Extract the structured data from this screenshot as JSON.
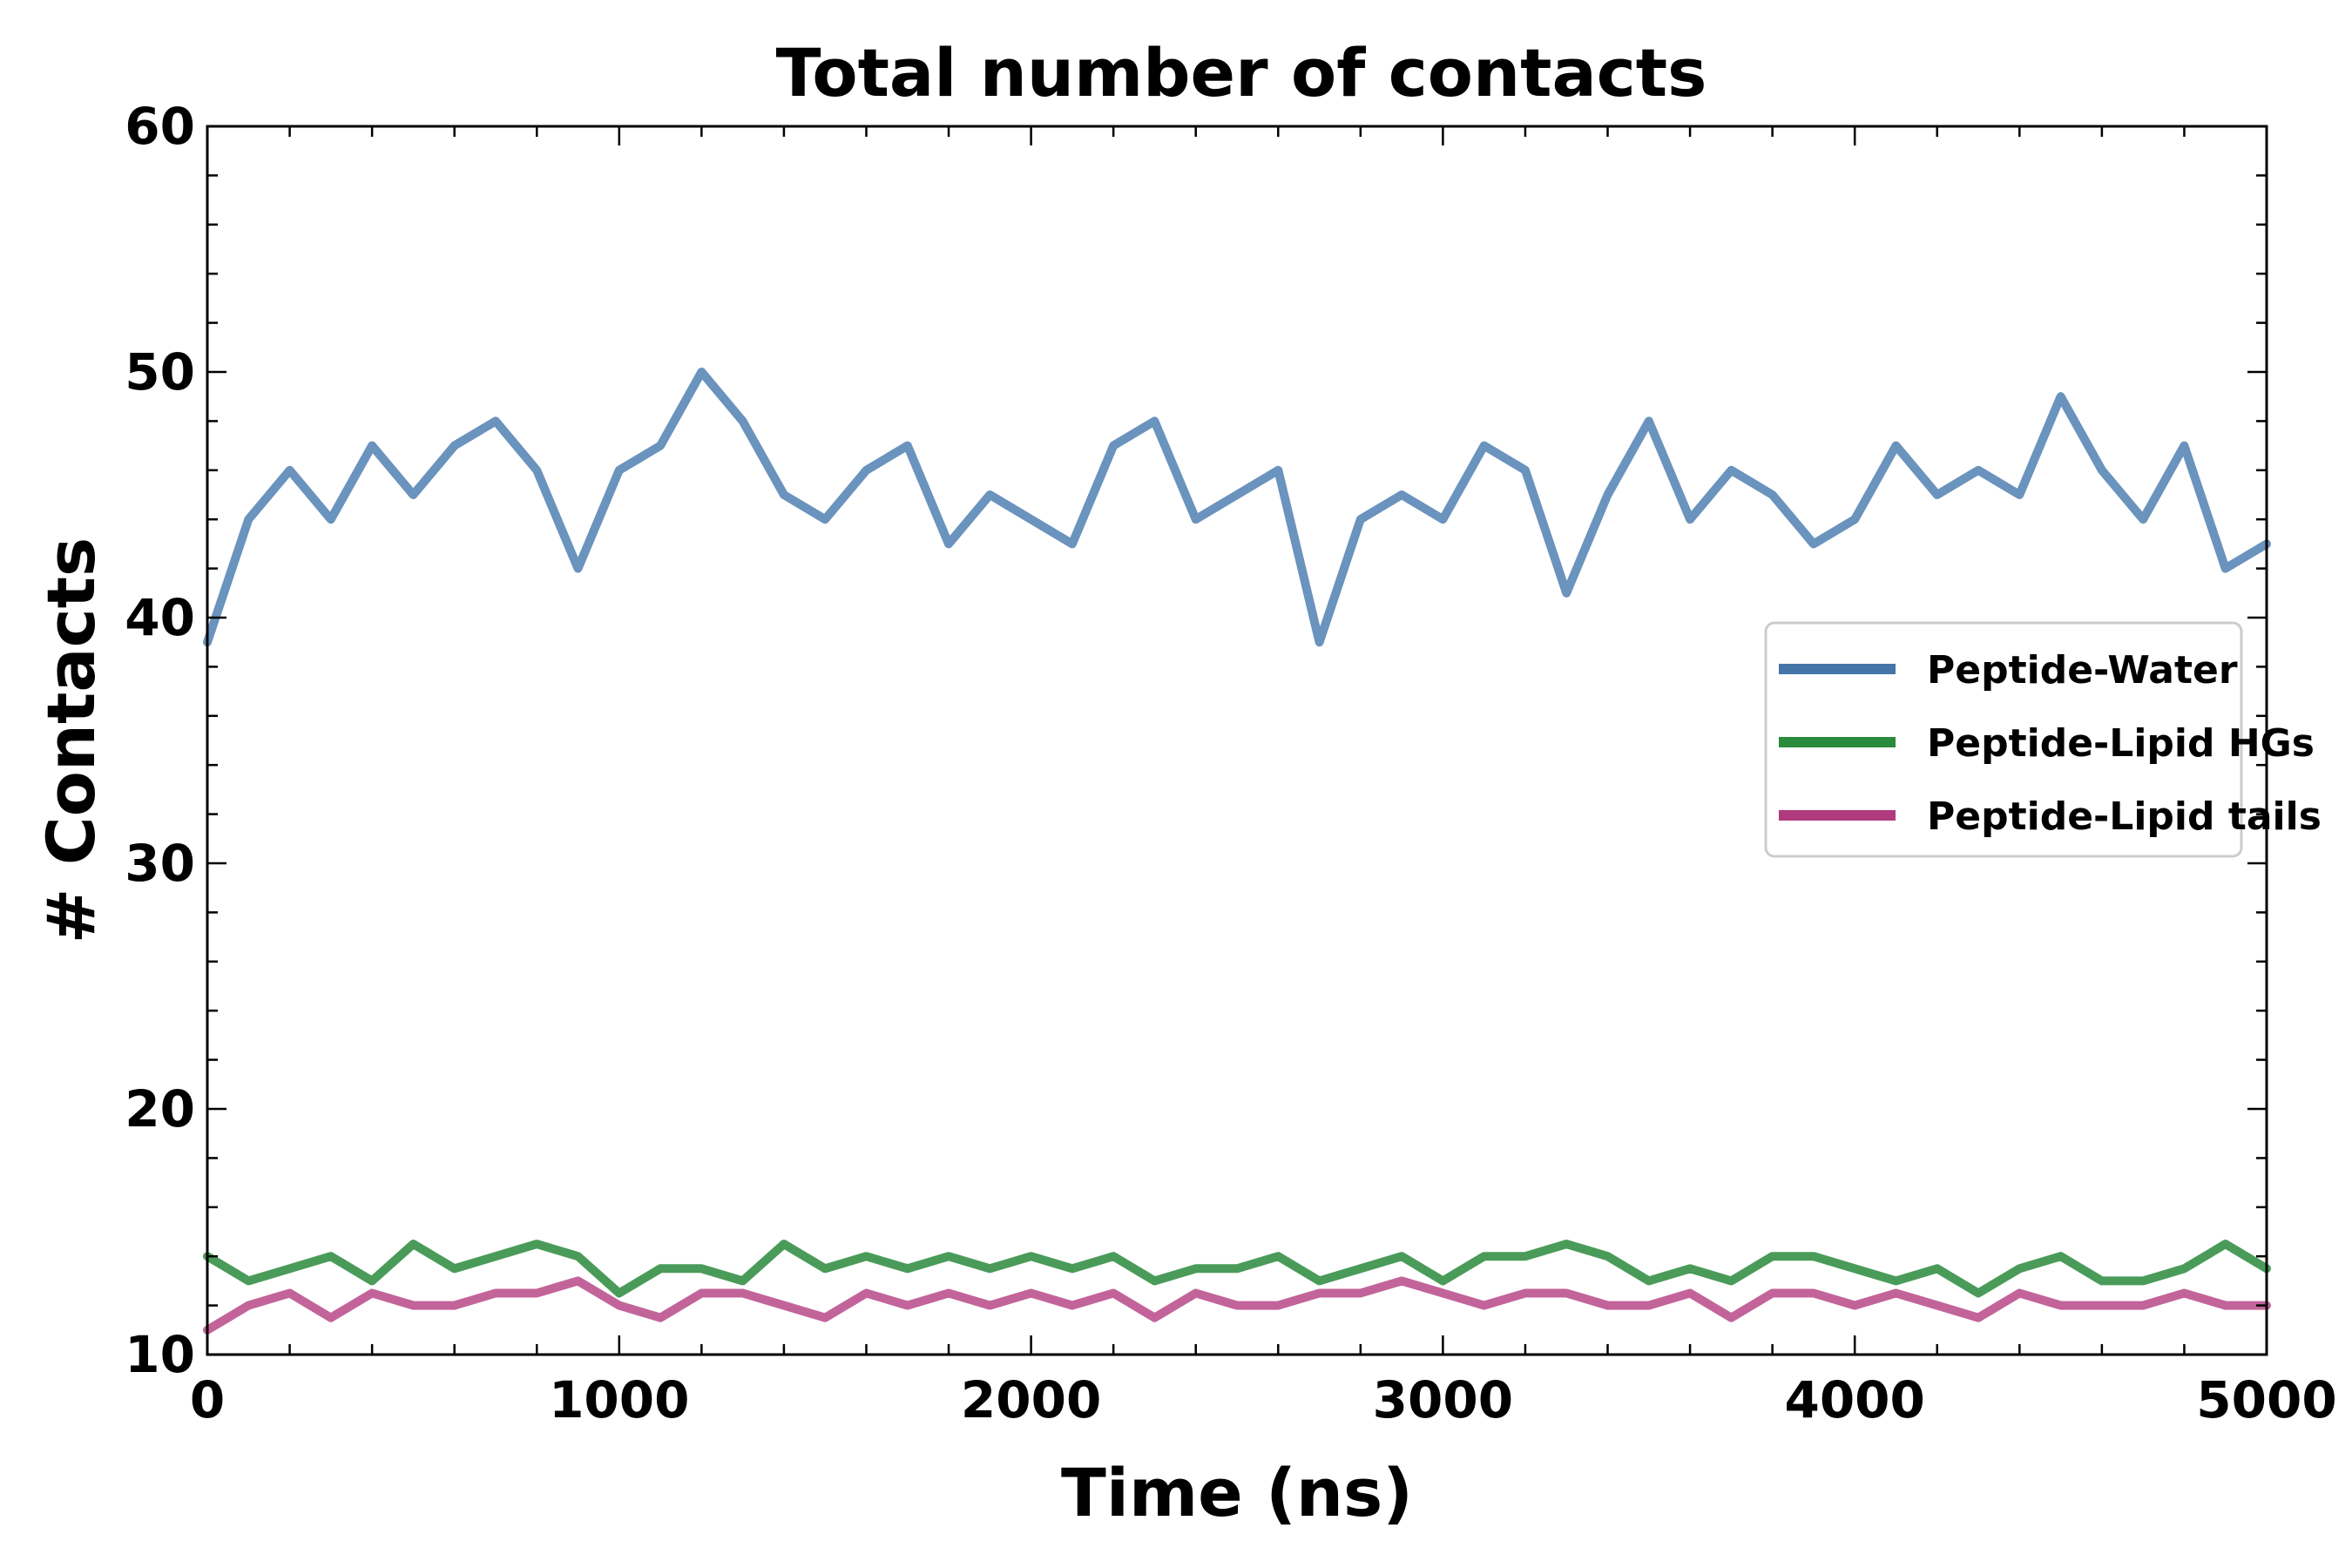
{
  "chart_data": {
    "type": "line",
    "title": "Total number of contacts",
    "xlabel": "Time (ns)",
    "ylabel": "# Contacts",
    "xlim": [
      0,
      5000
    ],
    "ylim": [
      10,
      60
    ],
    "x_ticks": [
      0,
      1000,
      2000,
      3000,
      4000,
      5000
    ],
    "y_ticks": [
      10,
      20,
      30,
      40,
      50,
      60
    ],
    "grid": false,
    "legend_position": "center-right",
    "x": [
      0,
      100,
      200,
      300,
      400,
      500,
      600,
      700,
      800,
      900,
      1000,
      1100,
      1200,
      1300,
      1400,
      1500,
      1600,
      1700,
      1800,
      1900,
      2000,
      2100,
      2200,
      2300,
      2400,
      2500,
      2600,
      2700,
      2800,
      2900,
      3000,
      3100,
      3200,
      3300,
      3400,
      3500,
      3600,
      3700,
      3800,
      3900,
      4000,
      4100,
      4200,
      4300,
      4400,
      4500,
      4600,
      4700,
      4800,
      4900,
      5000
    ],
    "series": [
      {
        "name": "Peptide-Water",
        "color": "#6a93bd",
        "legend_color": "#4575a8",
        "values": [
          39,
          44,
          46,
          44,
          47,
          45,
          47,
          48,
          46,
          42,
          46,
          47,
          50,
          48,
          45,
          44,
          46,
          47,
          43,
          45,
          44,
          43,
          47,
          48,
          44,
          45,
          46,
          39,
          44,
          45,
          44,
          47,
          46,
          41,
          45,
          48,
          44,
          46,
          45,
          43,
          44,
          47,
          45,
          46,
          45,
          49,
          46,
          44,
          47,
          42,
          43
        ]
      },
      {
        "name": "Peptide-Lipid HGs",
        "color": "#4a9b59",
        "legend_color": "#2a8a3d",
        "values": [
          14,
          13,
          13.5,
          14,
          13,
          14.5,
          13.5,
          14,
          14.5,
          14,
          12.5,
          13.5,
          13.5,
          13,
          14.5,
          13.5,
          14,
          13.5,
          14,
          13.5,
          14,
          13.5,
          14,
          13,
          13.5,
          13.5,
          14,
          13,
          13.5,
          14,
          13,
          14,
          14,
          14.5,
          14,
          13,
          13.5,
          13,
          14,
          14,
          13.5,
          13,
          13.5,
          12.5,
          13.5,
          14,
          13,
          13,
          13.5,
          14.5,
          13.5
        ]
      },
      {
        "name": "Peptide-Lipid tails",
        "color": "#c2649a",
        "legend_color": "#b03a7d",
        "values": [
          11,
          12,
          12.5,
          11.5,
          12.5,
          12,
          12,
          12.5,
          12.5,
          13,
          12,
          11.5,
          12.5,
          12.5,
          12,
          11.5,
          12.5,
          12,
          12.5,
          12,
          12.5,
          12,
          12.5,
          11.5,
          12.5,
          12,
          12,
          12.5,
          12.5,
          13,
          12.5,
          12,
          12.5,
          12.5,
          12,
          12,
          12.5,
          11.5,
          12.5,
          12.5,
          12,
          12.5,
          12,
          11.5,
          12.5,
          12,
          12,
          12,
          12.5,
          12,
          12
        ]
      }
    ]
  }
}
